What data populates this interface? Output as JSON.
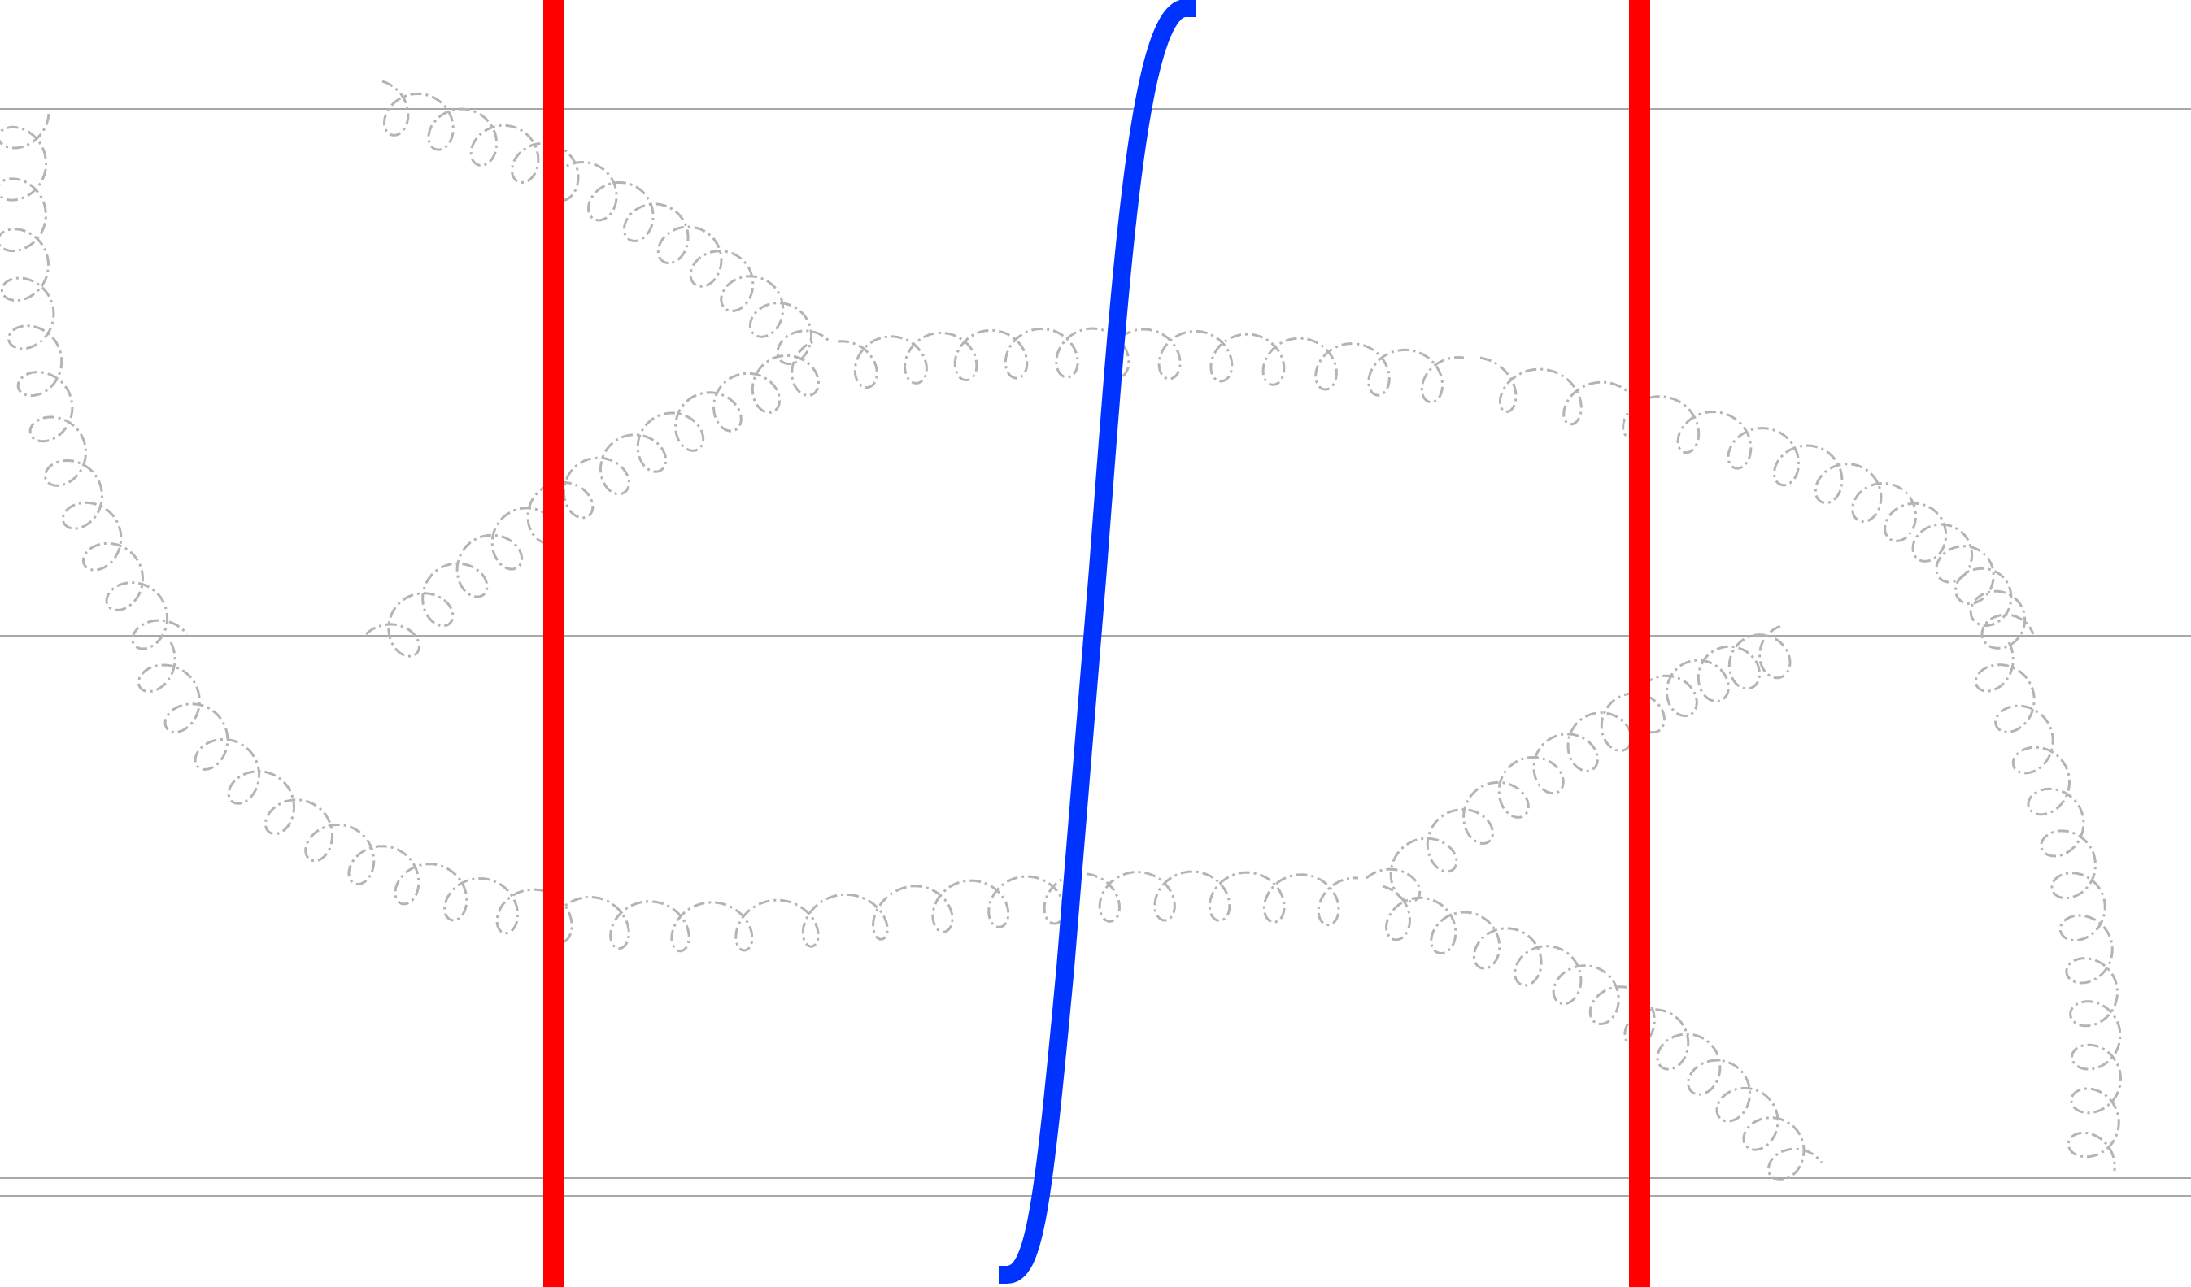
{
  "diagram": {
    "type": "feynman-gluon-diagram",
    "background_color": "#ffffff",
    "horizontal_lines": {
      "color": "#a8a8a8",
      "count": 5
    },
    "gluon_lines": {
      "color": "#b4b4b4",
      "style": "dash-dot coil",
      "count": 9
    },
    "cut_lines": {
      "color": "#ff0000",
      "count": 2
    },
    "integral_sign": {
      "color": "#0033ff",
      "glyph": "∫"
    }
  }
}
